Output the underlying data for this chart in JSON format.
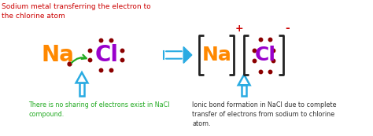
{
  "bg_color": "#ffffff",
  "title_text": "Sodium metal transferring the electron to\nthe chlorine atom",
  "title_color": "#cc0000",
  "na_left_color": "#ff8800",
  "cl_left_color": "#9900cc",
  "na_right_color": "#ff8800",
  "cl_right_color": "#9900cc",
  "dot_color": "#8B0000",
  "arrow_color": "#29abe2",
  "green_arrow_color": "#22aa22",
  "bracket_color": "#222222",
  "bottom_left_text": "There is no sharing of electrons exist in NaCl\ncompound.",
  "bottom_left_color": "#22aa22",
  "bottom_right_text": "Ionic bond formation in NaCl due to complete\ntransfer of electrons from sodium to chlorine\natom.",
  "bottom_right_color": "#333333",
  "plus_color": "#cc0000",
  "minus_color": "#cc0000"
}
